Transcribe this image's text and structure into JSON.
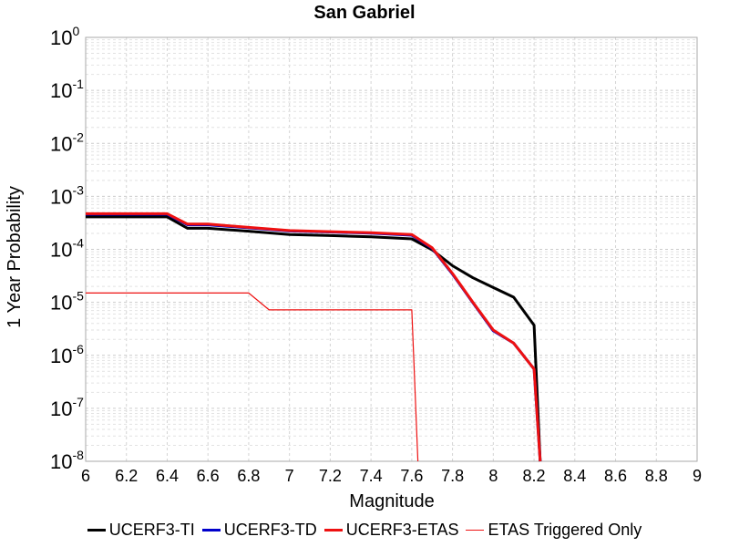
{
  "chart_data": {
    "type": "line",
    "title": "San Gabriel",
    "xlabel": "Magnitude",
    "ylabel": "1 Year Probability",
    "xlim": [
      6,
      9
    ],
    "ylim": [
      1e-08,
      1
    ],
    "yscale": "log",
    "grid": true,
    "legend_position": "bottom",
    "x_ticks": [
      "6",
      "6.2",
      "6.4",
      "6.6",
      "6.8",
      "7",
      "7.2",
      "7.4",
      "7.6",
      "7.8",
      "8",
      "8.2",
      "8.4",
      "8.6",
      "8.8",
      "9"
    ],
    "y_ticks": [
      {
        "base": "10",
        "exp": "0"
      },
      {
        "base": "10",
        "exp": "-1"
      },
      {
        "base": "10",
        "exp": "-2"
      },
      {
        "base": "10",
        "exp": "-3"
      },
      {
        "base": "10",
        "exp": "-4"
      },
      {
        "base": "10",
        "exp": "-5"
      },
      {
        "base": "10",
        "exp": "-6"
      },
      {
        "base": "10",
        "exp": "-7"
      },
      {
        "base": "10",
        "exp": "-8"
      }
    ],
    "series": [
      {
        "name": "UCERF3-TI",
        "color": "#000000",
        "stroke": "thick",
        "x": [
          6,
          6.4,
          6.5,
          6.6,
          6.8,
          7,
          7.2,
          7.4,
          7.6,
          7.7,
          7.8,
          7.9,
          8,
          8.1,
          8.2,
          8.23
        ],
        "y": [
          0.00041,
          0.00041,
          0.00025,
          0.00025,
          0.00022,
          0.00019,
          0.000182,
          0.000173,
          0.000158,
          9.8e-05,
          4.9e-05,
          2.9e-05,
          1.9e-05,
          1.25e-05,
          3.7e-06,
          1e-08
        ]
      },
      {
        "name": "UCERF3-TD",
        "color": "#0000cc",
        "stroke": "thick",
        "x": [
          6,
          6.4,
          6.5,
          6.6,
          6.8,
          7,
          7.2,
          7.4,
          7.6,
          7.7,
          7.8,
          7.9,
          8,
          8.1,
          8.2,
          8.23
        ],
        "y": [
          0.00046,
          0.00046,
          0.00029,
          0.00029,
          0.000255,
          0.000222,
          0.000212,
          0.000202,
          0.000185,
          0.000105,
          3.4e-05,
          9.8e-06,
          2.9e-06,
          1.7e-06,
          5.5e-07,
          1e-08
        ]
      },
      {
        "name": "UCERF3-ETAS",
        "color": "#ee1111",
        "stroke": "thick",
        "x": [
          6,
          6.4,
          6.5,
          6.6,
          6.8,
          7,
          7.2,
          7.4,
          7.6,
          7.7,
          7.8,
          7.9,
          8,
          8.1,
          8.2,
          8.23
        ],
        "y": [
          0.00047,
          0.00047,
          0.0003,
          0.0003,
          0.00026,
          0.000226,
          0.000216,
          0.000206,
          0.00019,
          0.000107,
          3.5e-05,
          1e-05,
          3e-06,
          1.7e-06,
          5.5e-07,
          1e-08
        ]
      },
      {
        "name": "ETAS Triggered Only",
        "color": "#ee1111",
        "stroke": "thin",
        "x": [
          6,
          6.8,
          6.9,
          7.6,
          7.63
        ],
        "y": [
          1.5e-05,
          1.5e-05,
          7.2e-06,
          7.2e-06,
          1e-08
        ]
      }
    ]
  }
}
